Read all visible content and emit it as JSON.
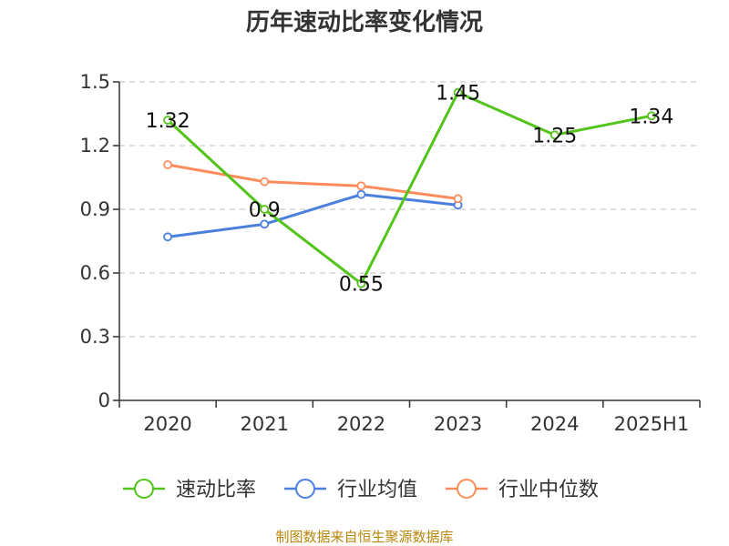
{
  "chart_data": {
    "type": "line",
    "title": "历年速动比率变化情况",
    "categories": [
      "2020",
      "2021",
      "2022",
      "2023",
      "2024",
      "2025H1"
    ],
    "ylim": [
      0,
      1.5
    ],
    "yticks": [
      "0",
      "0.3",
      "0.6",
      "0.9",
      "1.2",
      "1.5"
    ],
    "ytick_values": [
      0,
      0.3,
      0.6,
      0.9,
      1.2,
      1.5
    ],
    "grid": true,
    "legend_position": "bottom",
    "series": [
      {
        "name": "速动比率",
        "color": "#52c41a",
        "values": [
          1.32,
          0.9,
          0.55,
          1.45,
          1.25,
          1.34
        ],
        "labels": [
          "1.32",
          "0.9",
          "0.55",
          "1.45",
          "1.25",
          "1.34"
        ]
      },
      {
        "name": "行业均值",
        "color": "#4a7fde",
        "values": [
          0.77,
          0.83,
          0.97,
          0.92,
          null,
          null
        ]
      },
      {
        "name": "行业中位数",
        "color": "#ff8c5a",
        "values": [
          1.11,
          1.03,
          1.01,
          0.95,
          null,
          null
        ]
      }
    ]
  },
  "footer": {
    "source": "制图数据来自恒生聚源数据库"
  }
}
